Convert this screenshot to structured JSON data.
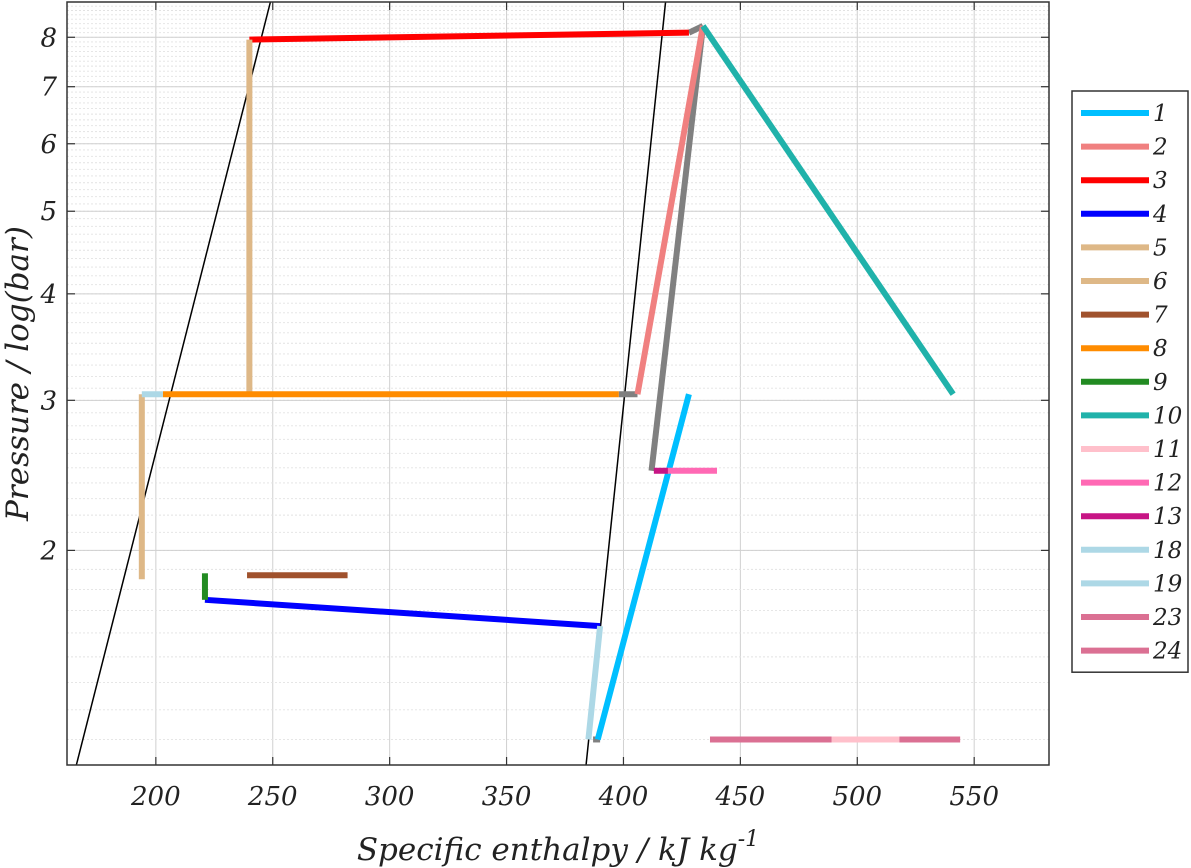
{
  "chart_data": {
    "type": "line",
    "title": "",
    "xlabel": "Specific enthalpy / kJ kg",
    "xlabel_sup": "-1",
    "ylabel": "Pressure / log(bar)",
    "xlim": [
      162,
      582
    ],
    "ylim": [
      1.12,
      8.8
    ],
    "yscale": "log",
    "xticks": [
      200,
      250,
      300,
      350,
      400,
      450,
      500,
      550
    ],
    "yticks": [
      2,
      3,
      4,
      5,
      6,
      7,
      8
    ],
    "grid": true,
    "legend": "right-outside",
    "saturation_curves": [
      {
        "points": [
          [
            166,
            1.12
          ],
          [
            249,
            8.8
          ]
        ],
        "color": "#000000"
      },
      {
        "points": [
          [
            384,
            1.12
          ],
          [
            418,
            8.8
          ]
        ],
        "color": "#000000"
      }
    ],
    "series": [
      {
        "name": "1",
        "color": "#00BFFF",
        "points": [
          [
            389,
            1.2
          ],
          [
            428,
            3.05
          ]
        ]
      },
      {
        "name": "2",
        "color": "#F08080",
        "points": [
          [
            406,
            3.05
          ],
          [
            434,
            8.25
          ]
        ]
      },
      {
        "name": "3",
        "color": "#FF0000",
        "points": [
          [
            240,
            7.95
          ],
          [
            428,
            8.1
          ]
        ]
      },
      {
        "name": "4",
        "color": "#0000FF",
        "points": [
          [
            221,
            1.75
          ],
          [
            390,
            1.63
          ]
        ]
      },
      {
        "name": "5",
        "color": "#DEB887",
        "points": [
          [
            240,
            3.05
          ],
          [
            240,
            7.95
          ]
        ]
      },
      {
        "name": "6",
        "color": "#DEB887",
        "points": [
          [
            194,
            1.85
          ],
          [
            194,
            3.05
          ]
        ]
      },
      {
        "name": "7",
        "color": "#A0522D",
        "points": [
          [
            239,
            1.87
          ],
          [
            282,
            1.87
          ]
        ]
      },
      {
        "name": "8",
        "color": "#FF8C00",
        "points": [
          [
            203,
            3.05
          ],
          [
            398,
            3.05
          ]
        ]
      },
      {
        "name": "9",
        "color": "#228B22",
        "points": [
          [
            221,
            1.75
          ],
          [
            221,
            1.88
          ]
        ]
      },
      {
        "name": "10",
        "color": "#20B2AA",
        "points": [
          [
            434,
            8.25
          ],
          [
            541,
            3.05
          ]
        ]
      },
      {
        "name": "11",
        "color": "#FFC0CB",
        "points": [
          [
            489,
            1.2
          ],
          [
            518,
            1.2
          ]
        ]
      },
      {
        "name": "12",
        "color": "#FF69B4",
        "points": [
          [
            418,
            2.48
          ],
          [
            440,
            2.48
          ]
        ]
      },
      {
        "name": "13",
        "color": "#C71585",
        "points": [
          [
            413,
            2.48
          ],
          [
            419,
            2.48
          ]
        ]
      },
      {
        "name": "18",
        "color": "#ADD8E6",
        "points": [
          [
            194,
            3.05
          ],
          [
            203,
            3.05
          ]
        ]
      },
      {
        "name": "19",
        "color": "#ADD8E6",
        "points": [
          [
            385,
            1.2
          ],
          [
            390,
            1.63
          ]
        ]
      },
      {
        "name": "23",
        "color": "#DB7093",
        "points": [
          [
            437,
            1.2
          ],
          [
            489,
            1.2
          ]
        ]
      },
      {
        "name": "24",
        "color": "#DB7093",
        "points": [
          [
            518,
            1.2
          ],
          [
            544,
            1.2
          ]
        ]
      }
    ],
    "unlabeled_lines": [
      {
        "color": "#808080",
        "points": [
          [
            398,
            3.05
          ],
          [
            406,
            3.05
          ]
        ]
      },
      {
        "color": "#808080",
        "points": [
          [
            412,
            2.48
          ],
          [
            434,
            8.25
          ]
        ]
      },
      {
        "color": "#808080",
        "points": [
          [
            428,
            8.1
          ],
          [
            434,
            8.25
          ]
        ]
      },
      {
        "color": "#808080",
        "points": [
          [
            387,
            1.2
          ],
          [
            390,
            1.2
          ]
        ]
      }
    ]
  }
}
